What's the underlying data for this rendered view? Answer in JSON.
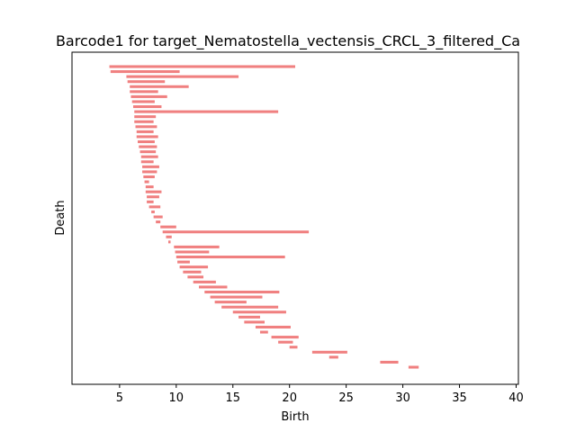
{
  "chart_data": {
    "type": "barcode",
    "title": "Barcode1 for target_Nematostella_vectensis_CRCL_3_filtered_Ca",
    "xlabel": "Birth",
    "ylabel": "Death",
    "xlim": [
      0.8,
      40.2
    ],
    "xticks": [
      5,
      10,
      15,
      20,
      25,
      30,
      35,
      40
    ],
    "bar_color": "#f08080",
    "grid": false,
    "legend": "none",
    "intervals": [
      [
        4.1,
        20.5
      ],
      [
        4.2,
        10.3
      ],
      [
        5.6,
        15.5
      ],
      [
        5.7,
        9.0
      ],
      [
        5.9,
        11.1
      ],
      [
        5.9,
        8.4
      ],
      [
        6.0,
        9.2
      ],
      [
        6.1,
        8.1
      ],
      [
        6.2,
        8.7
      ],
      [
        6.3,
        19.0
      ],
      [
        6.3,
        8.2
      ],
      [
        6.3,
        8.0
      ],
      [
        6.4,
        8.3
      ],
      [
        6.5,
        8.0
      ],
      [
        6.5,
        8.4
      ],
      [
        6.6,
        8.1
      ],
      [
        6.7,
        8.3
      ],
      [
        6.8,
        8.2
      ],
      [
        6.9,
        8.4
      ],
      [
        6.9,
        8.0
      ],
      [
        7.0,
        8.5
      ],
      [
        7.0,
        8.3
      ],
      [
        7.1,
        8.1
      ],
      [
        7.2,
        7.6
      ],
      [
        7.3,
        8.0
      ],
      [
        7.3,
        8.7
      ],
      [
        7.4,
        8.5
      ],
      [
        7.4,
        8.0
      ],
      [
        7.6,
        8.6
      ],
      [
        7.8,
        8.1
      ],
      [
        8.0,
        8.8
      ],
      [
        8.2,
        8.6
      ],
      [
        8.6,
        10.0
      ],
      [
        8.8,
        21.7
      ],
      [
        9.1,
        9.6
      ],
      [
        9.3,
        9.5
      ],
      [
        9.8,
        13.8
      ],
      [
        9.9,
        12.9
      ],
      [
        10.0,
        19.6
      ],
      [
        10.1,
        11.2
      ],
      [
        10.3,
        12.8
      ],
      [
        10.6,
        12.2
      ],
      [
        11.0,
        12.4
      ],
      [
        11.5,
        13.5
      ],
      [
        12.0,
        14.5
      ],
      [
        12.5,
        19.1
      ],
      [
        13.0,
        17.6
      ],
      [
        13.4,
        16.2
      ],
      [
        14.0,
        19.0
      ],
      [
        15.0,
        19.7
      ],
      [
        15.5,
        17.4
      ],
      [
        16.0,
        17.8
      ],
      [
        17.0,
        20.1
      ],
      [
        17.4,
        18.1
      ],
      [
        18.4,
        20.8
      ],
      [
        19.0,
        20.3
      ],
      [
        20.0,
        20.7
      ],
      [
        22.0,
        25.1
      ],
      [
        23.5,
        24.3
      ],
      [
        28.0,
        29.6
      ],
      [
        30.5,
        31.4
      ]
    ]
  }
}
